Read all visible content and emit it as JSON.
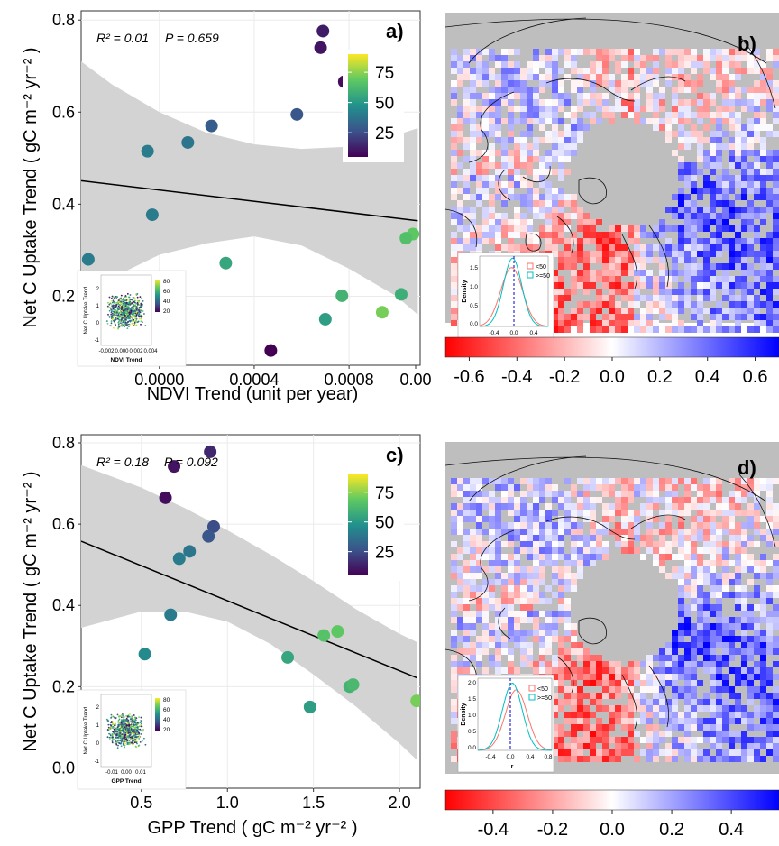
{
  "chart_data": [
    {
      "id": "a",
      "type": "scatter",
      "panel_label": "a)",
      "annotation_r2": "R² = 0.01",
      "annotation_p": "P = 0.659",
      "xlabel": "NDVI Trend (unit per year)",
      "ylabel": "Net C Uptake Trend ( gC m⁻² yr⁻² )",
      "xlim": [
        -0.00033,
        0.0011
      ],
      "ylim": [
        0.05,
        0.82
      ],
      "x_ticks": [
        0.0,
        0.0004,
        0.0008,
        0.0012
      ],
      "x_tick_labels": [
        "0.0000",
        "0.0004",
        "0.0008",
        "0.00"
      ],
      "y_ticks": [
        0.2,
        0.4,
        0.6,
        0.8
      ],
      "y_tick_labels": [
        "0.2",
        "0.4",
        "0.6",
        "0.8"
      ],
      "grid": true,
      "colorbar": {
        "ticks": [
          25,
          50,
          75
        ],
        "range": [
          5,
          90
        ]
      },
      "fit_line": {
        "x": [
          -0.00033,
          0.00109
        ],
        "y": [
          0.451,
          0.364
        ]
      },
      "confidence_band": {
        "x": [
          -0.00033,
          -0.0002,
          0.0,
          0.0002,
          0.0004,
          0.0006,
          0.0008,
          0.001,
          0.00109
        ],
        "upper": [
          0.71,
          0.66,
          0.6,
          0.555,
          0.53,
          0.52,
          0.525,
          0.55,
          0.565
        ],
        "lower": [
          0.195,
          0.24,
          0.29,
          0.315,
          0.33,
          0.31,
          0.26,
          0.2,
          0.16
        ]
      },
      "points": [
        {
          "x": 0.00069,
          "y": 0.776,
          "c": 12
        },
        {
          "x": 0.00068,
          "y": 0.74,
          "c": 10
        },
        {
          "x": 0.00078,
          "y": 0.666,
          "c": 8
        },
        {
          "x": 0.00058,
          "y": 0.595,
          "c": 28
        },
        {
          "x": 0.00022,
          "y": 0.57,
          "c": 30
        },
        {
          "x": 0.00012,
          "y": 0.534,
          "c": 38
        },
        {
          "x": -5e-05,
          "y": 0.515,
          "c": 40
        },
        {
          "x": -3e-05,
          "y": 0.377,
          "c": 40
        },
        {
          "x": -0.0003,
          "y": 0.28,
          "c": 40
        },
        {
          "x": 0.00028,
          "y": 0.272,
          "c": 55
        },
        {
          "x": 0.00107,
          "y": 0.335,
          "c": 68
        },
        {
          "x": 0.00104,
          "y": 0.326,
          "c": 65
        },
        {
          "x": 0.00077,
          "y": 0.201,
          "c": 60
        },
        {
          "x": 0.00102,
          "y": 0.204,
          "c": 58
        },
        {
          "x": 0.0007,
          "y": 0.15,
          "c": 52
        },
        {
          "x": 0.00094,
          "y": 0.165,
          "c": 72
        },
        {
          "x": 0.00047,
          "y": 0.082,
          "c": 5
        }
      ],
      "inset": {
        "xlabel": "NDVI Trend",
        "ylabel": "Net C Uptake Trend",
        "x_tick_labels": [
          "-0.002",
          "0.000",
          "0.002",
          "0.004"
        ],
        "y_tick_labels": [
          "-1",
          "0",
          "1",
          "2"
        ],
        "colorbar_labels": [
          "80",
          "60",
          "40",
          "20"
        ]
      }
    },
    {
      "id": "c",
      "type": "scatter",
      "panel_label": "c)",
      "annotation_r2": "R² = 0.18",
      "annotation_p": "P = 0.092",
      "xlabel": "GPP Trend ( gC m⁻² yr⁻² )",
      "ylabel": "Net C Uptake Trend ( gC m⁻² yr⁻² )",
      "xlim": [
        0.15,
        2.12
      ],
      "ylim": [
        -0.05,
        0.82
      ],
      "x_ticks": [
        0.5,
        1.0,
        1.5,
        2.0
      ],
      "x_tick_labels": [
        "0.5",
        "1.0",
        "1.5",
        "2.0"
      ],
      "y_ticks": [
        0.0,
        0.2,
        0.4,
        0.6,
        0.8
      ],
      "y_tick_labels": [
        "0.0",
        "0.2",
        "0.4",
        "0.6",
        "0.8"
      ],
      "grid": true,
      "colorbar": {
        "ticks": [
          25,
          50,
          75
        ],
        "range": [
          5,
          90
        ]
      },
      "fit_line": {
        "x": [
          0.15,
          2.1
        ],
        "y": [
          0.558,
          0.222
        ]
      },
      "confidence_band": {
        "x": [
          0.15,
          0.5,
          0.75,
          1.0,
          1.25,
          1.5,
          1.75,
          2.0,
          2.1
        ],
        "upper": [
          0.745,
          0.69,
          0.64,
          0.585,
          0.525,
          0.46,
          0.39,
          0.33,
          0.31
        ],
        "lower": [
          0.345,
          0.385,
          0.385,
          0.36,
          0.305,
          0.23,
          0.15,
          0.06,
          0.02
        ]
      },
      "points": [
        {
          "x": 0.9,
          "y": 0.778,
          "c": 15
        },
        {
          "x": 0.69,
          "y": 0.742,
          "c": 10
        },
        {
          "x": 0.64,
          "y": 0.665,
          "c": 8
        },
        {
          "x": 0.92,
          "y": 0.594,
          "c": 25
        },
        {
          "x": 0.89,
          "y": 0.57,
          "c": 28
        },
        {
          "x": 0.78,
          "y": 0.533,
          "c": 38
        },
        {
          "x": 0.72,
          "y": 0.515,
          "c": 40
        },
        {
          "x": 0.67,
          "y": 0.377,
          "c": 40
        },
        {
          "x": 0.52,
          "y": 0.28,
          "c": 45
        },
        {
          "x": 1.35,
          "y": 0.272,
          "c": 55
        },
        {
          "x": 1.64,
          "y": 0.336,
          "c": 68
        },
        {
          "x": 1.56,
          "y": 0.326,
          "c": 66
        },
        {
          "x": 1.71,
          "y": 0.2,
          "c": 60
        },
        {
          "x": 1.73,
          "y": 0.205,
          "c": 62
        },
        {
          "x": 1.48,
          "y": 0.15,
          "c": 52
        },
        {
          "x": 2.1,
          "y": 0.165,
          "c": 72
        }
      ],
      "inset": {
        "xlabel": "GPP Trend",
        "ylabel": "Net C Uptake Trend",
        "x_tick_labels": [
          "-0.01",
          "0.00",
          "0.01"
        ],
        "y_tick_labels": [
          "-1",
          "0",
          "1",
          "2"
        ],
        "colorbar_labels": [
          "80",
          "60",
          "40",
          "20"
        ]
      }
    }
  ],
  "maps": [
    {
      "id": "b",
      "panel_label": "b)",
      "colorbar_range": [
        -0.7,
        0.7
      ],
      "colorbar_tick_values": [
        -0.6,
        -0.4,
        -0.2,
        0.0,
        0.2,
        0.4,
        0.6
      ],
      "colorbar_tick_labels": [
        "-0.6",
        "-0.4",
        "-0.2",
        "0.0",
        "0.2",
        "0.4",
        "0.6"
      ],
      "inset": {
        "type": "line",
        "xlabel": "r",
        "ylabel": "Density",
        "x_tick_labels": [
          "-0.4",
          "0.0",
          "0.4"
        ],
        "y_tick_labels": [
          "0.0",
          "0.5",
          "1.0",
          "1.5"
        ],
        "legend": [
          "<50",
          ">=50"
        ],
        "series_colors": [
          "#f8766d",
          "#00bfc4"
        ]
      }
    },
    {
      "id": "d",
      "panel_label": "d)",
      "colorbar_range": [
        -0.56,
        0.56
      ],
      "colorbar_tick_values": [
        -0.4,
        -0.2,
        0.0,
        0.2,
        0.4
      ],
      "colorbar_tick_labels": [
        "-0.4",
        "-0.2",
        "0.0",
        "0.2",
        "0.4"
      ],
      "inset": {
        "type": "line",
        "xlabel": "r",
        "ylabel": "Density",
        "x_tick_labels": [
          "-0.4",
          "0.0",
          "0.4",
          "0.8"
        ],
        "y_tick_labels": [
          "0.0",
          "0.5",
          "1.0",
          "1.5",
          "2.0"
        ],
        "legend": [
          "<50",
          ">=50"
        ],
        "series_colors": [
          "#f8766d",
          "#00bfc4"
        ]
      }
    }
  ],
  "colors": {
    "band": "#d3d3d3",
    "fit": "#000000",
    "map_background": "#bebebe",
    "diverging_low": "#ff0000",
    "diverging_mid": "#ffffff",
    "diverging_high": "#0000ff"
  }
}
